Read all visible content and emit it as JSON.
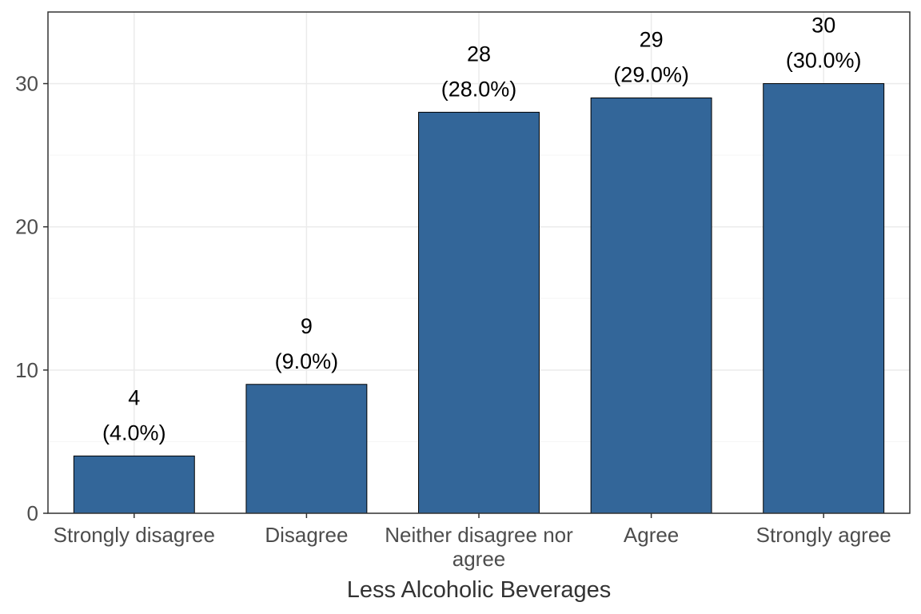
{
  "chart_data": {
    "type": "bar",
    "title": "",
    "xlabel": "Less Alcoholic Beverages",
    "ylabel": "",
    "categories": [
      "Strongly disagree",
      "Disagree",
      "Neither disagree nor agree",
      "Agree",
      "Strongly agree"
    ],
    "category_label_lines": [
      [
        "Strongly disagree"
      ],
      [
        "Disagree"
      ],
      [
        "Neither disagree nor",
        "agree"
      ],
      [
        "Agree"
      ],
      [
        "Strongly agree"
      ]
    ],
    "values": [
      4,
      9,
      28,
      29,
      30
    ],
    "value_labels": [
      "4",
      "9",
      "28",
      "29",
      "30"
    ],
    "percent_labels": [
      "(4.0%)",
      "(9.0%)",
      "(28.0%)",
      "(29.0%)",
      "(30.0%)"
    ],
    "ylim": [
      0,
      35
    ],
    "y_ticks": [
      0,
      10,
      20,
      30
    ],
    "y_tick_labels": [
      "0",
      "10",
      "20",
      "30"
    ],
    "grid": true,
    "colors": {
      "bar_fill": "#336699",
      "bar_stroke": "#000000",
      "grid_major": "#ebebeb",
      "grid_minor": "#f5f5f5",
      "panel_border": "#333333"
    }
  }
}
